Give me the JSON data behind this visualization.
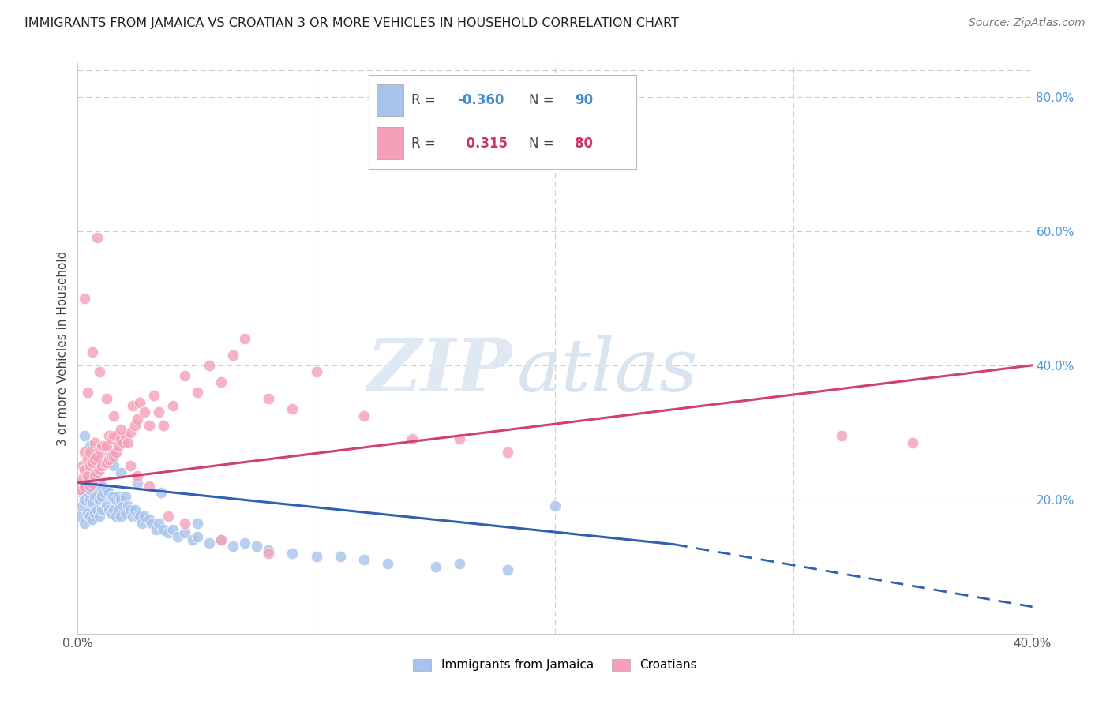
{
  "title": "IMMIGRANTS FROM JAMAICA VS CROATIAN 3 OR MORE VEHICLES IN HOUSEHOLD CORRELATION CHART",
  "source": "Source: ZipAtlas.com",
  "ylabel": "3 or more Vehicles in Household",
  "xlim": [
    0.0,
    0.4
  ],
  "ylim": [
    0.0,
    0.85
  ],
  "legend_label1": "Immigrants from Jamaica",
  "legend_label2": "Croatians",
  "R1": "-0.360",
  "N1": "90",
  "R2": "0.315",
  "N2": "80",
  "color_jamaica": "#a8c4ed",
  "color_croatia": "#f5a0b8",
  "color_line_jamaica": "#3060b0",
  "color_line_croatia": "#d04070",
  "watermark_zip": "ZIP",
  "watermark_atlas": "atlas",
  "background_color": "#ffffff",
  "grid_color": "#cccccc",
  "line_j_x0": 0.0,
  "line_j_y0": 0.225,
  "line_j_x1": 0.25,
  "line_j_y1": 0.133,
  "line_j_xdash": 0.4,
  "line_j_ydash": 0.04,
  "line_c_x0": 0.0,
  "line_c_y0": 0.225,
  "line_c_x1": 0.4,
  "line_c_y1": 0.4,
  "jamaica_x": [
    0.001,
    0.002,
    0.002,
    0.003,
    0.003,
    0.003,
    0.004,
    0.004,
    0.004,
    0.005,
    0.005,
    0.005,
    0.006,
    0.006,
    0.006,
    0.007,
    0.007,
    0.007,
    0.008,
    0.008,
    0.008,
    0.009,
    0.009,
    0.009,
    0.01,
    0.01,
    0.01,
    0.011,
    0.011,
    0.012,
    0.012,
    0.013,
    0.013,
    0.014,
    0.014,
    0.015,
    0.015,
    0.016,
    0.016,
    0.017,
    0.017,
    0.018,
    0.018,
    0.019,
    0.02,
    0.02,
    0.021,
    0.022,
    0.023,
    0.024,
    0.025,
    0.026,
    0.027,
    0.028,
    0.03,
    0.031,
    0.033,
    0.034,
    0.036,
    0.038,
    0.04,
    0.042,
    0.045,
    0.048,
    0.05,
    0.055,
    0.06,
    0.065,
    0.07,
    0.075,
    0.08,
    0.09,
    0.1,
    0.11,
    0.12,
    0.13,
    0.15,
    0.16,
    0.18,
    0.2,
    0.003,
    0.005,
    0.007,
    0.01,
    0.013,
    0.015,
    0.018,
    0.025,
    0.035,
    0.05
  ],
  "jamaica_y": [
    0.175,
    0.19,
    0.21,
    0.165,
    0.2,
    0.22,
    0.18,
    0.21,
    0.23,
    0.175,
    0.2,
    0.215,
    0.17,
    0.195,
    0.22,
    0.18,
    0.205,
    0.225,
    0.185,
    0.205,
    0.22,
    0.175,
    0.2,
    0.22,
    0.185,
    0.205,
    0.22,
    0.185,
    0.21,
    0.19,
    0.215,
    0.185,
    0.21,
    0.18,
    0.205,
    0.185,
    0.205,
    0.175,
    0.2,
    0.185,
    0.205,
    0.175,
    0.2,
    0.19,
    0.18,
    0.205,
    0.19,
    0.185,
    0.175,
    0.185,
    0.175,
    0.175,
    0.165,
    0.175,
    0.17,
    0.165,
    0.155,
    0.165,
    0.155,
    0.15,
    0.155,
    0.145,
    0.15,
    0.14,
    0.145,
    0.135,
    0.14,
    0.13,
    0.135,
    0.13,
    0.125,
    0.12,
    0.115,
    0.115,
    0.11,
    0.105,
    0.1,
    0.105,
    0.095,
    0.19,
    0.295,
    0.28,
    0.265,
    0.265,
    0.255,
    0.25,
    0.24,
    0.225,
    0.21,
    0.165
  ],
  "croatia_x": [
    0.001,
    0.002,
    0.002,
    0.003,
    0.003,
    0.003,
    0.004,
    0.004,
    0.005,
    0.005,
    0.005,
    0.006,
    0.006,
    0.007,
    0.007,
    0.007,
    0.008,
    0.008,
    0.009,
    0.009,
    0.01,
    0.01,
    0.011,
    0.011,
    0.012,
    0.012,
    0.013,
    0.013,
    0.014,
    0.014,
    0.015,
    0.015,
    0.016,
    0.016,
    0.017,
    0.018,
    0.019,
    0.02,
    0.021,
    0.022,
    0.023,
    0.024,
    0.025,
    0.026,
    0.028,
    0.03,
    0.032,
    0.034,
    0.036,
    0.04,
    0.045,
    0.05,
    0.055,
    0.06,
    0.065,
    0.07,
    0.08,
    0.09,
    0.1,
    0.12,
    0.14,
    0.16,
    0.18,
    0.004,
    0.006,
    0.009,
    0.012,
    0.015,
    0.018,
    0.022,
    0.025,
    0.03,
    0.038,
    0.045,
    0.06,
    0.08,
    0.32,
    0.35,
    0.003,
    0.008
  ],
  "croatia_y": [
    0.215,
    0.23,
    0.25,
    0.22,
    0.245,
    0.27,
    0.235,
    0.26,
    0.22,
    0.25,
    0.27,
    0.225,
    0.255,
    0.235,
    0.26,
    0.285,
    0.24,
    0.265,
    0.245,
    0.275,
    0.25,
    0.28,
    0.255,
    0.28,
    0.255,
    0.28,
    0.26,
    0.295,
    0.265,
    0.29,
    0.265,
    0.295,
    0.27,
    0.295,
    0.28,
    0.29,
    0.285,
    0.295,
    0.285,
    0.3,
    0.34,
    0.31,
    0.32,
    0.345,
    0.33,
    0.31,
    0.355,
    0.33,
    0.31,
    0.34,
    0.385,
    0.36,
    0.4,
    0.375,
    0.415,
    0.44,
    0.35,
    0.335,
    0.39,
    0.325,
    0.29,
    0.29,
    0.27,
    0.36,
    0.42,
    0.39,
    0.35,
    0.325,
    0.305,
    0.25,
    0.235,
    0.22,
    0.175,
    0.165,
    0.14,
    0.12,
    0.295,
    0.285,
    0.5,
    0.59
  ]
}
